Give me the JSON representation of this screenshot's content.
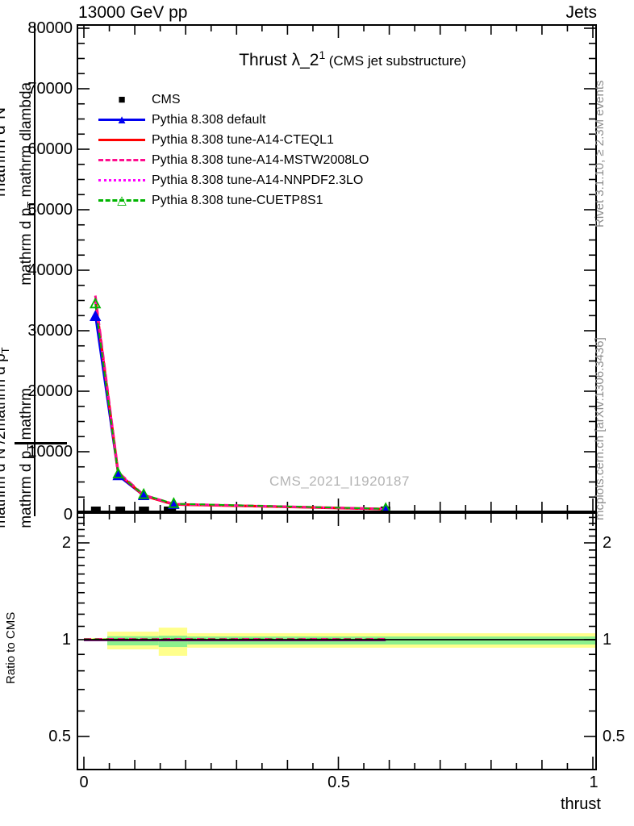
{
  "header": {
    "left": "13000 GeV pp",
    "right": "Jets"
  },
  "title": {
    "main": "Thrust λ_2",
    "sup": "1",
    "paren": "(CMS jet substructure)"
  },
  "watermark": "CMS_2021_I1920187",
  "side_notes": {
    "top": "Rivet 3.1.10, ≥ 2.3M events",
    "bottom": "mcplots.cern.ch [arXiv:1306.3436]"
  },
  "ylabel": {
    "one": "1",
    "outer_a": [
      "mathrm d N /2mathrm d p",
      "T"
    ],
    "outer_num": [
      "mathrm d",
      "2",
      "N"
    ],
    "inner_a": [
      "mathrm d p",
      "T",
      " mathrm"
    ],
    "inner_b": [
      "mathrm d p",
      "T",
      " mathrm dlambda"
    ]
  },
  "legend": {
    "items": [
      {
        "label": "CMS",
        "color": "#000000",
        "line": "none",
        "marker": "■"
      },
      {
        "label": "Pythia 8.308 default",
        "color": "#0000f0",
        "line": "solid",
        "marker": "▲"
      },
      {
        "label": "Pythia 8.308 tune-A14-CTEQL1",
        "color": "#ff0000",
        "line": "solid",
        "marker": ""
      },
      {
        "label": "Pythia 8.308 tune-A14-MSTW2008LO",
        "color": "#ff0e8e",
        "line": "dashed",
        "marker": ""
      },
      {
        "label": "Pythia 8.308 tune-A14-NNPDF2.3LO",
        "color": "#ff00ff",
        "line": "dotted",
        "marker": ""
      },
      {
        "label": "Pythia 8.308 tune-CUETP8S1",
        "color": "#00b400",
        "line": "dashed",
        "marker": "△"
      }
    ]
  },
  "axes": {
    "y_ticks": [
      "80000",
      "70000",
      "60000",
      "50000",
      "40000",
      "30000",
      "20000",
      "10000",
      "0"
    ],
    "x_ticks": [
      "0",
      "0.5",
      "1"
    ],
    "ratio_ticks": [
      "2",
      "1",
      "0.5"
    ],
    "xlabel": "thrust",
    "ratio_ylabel": "Ratio to CMS"
  },
  "chart_data": [
    {
      "type": "line",
      "title": "Thrust λ_2^1 (CMS jet substructure)",
      "xlabel": "thrust",
      "ylabel_garbled": "1 / mathrm d N /2mathrm d p_T  mathrm d²N / mathrm d p_T mathrm dlambda",
      "xlim": [
        0,
        1.013
      ],
      "ylim": [
        0,
        80400
      ],
      "x": [
        0.0225,
        0.0675,
        0.1175,
        0.1765,
        0.593
      ],
      "cms_value": 600,
      "cms_bins": [
        {
          "x0": 0.014,
          "x1": 0.033
        },
        {
          "x0": 0.062,
          "x1": 0.081
        },
        {
          "x0": 0.108,
          "x1": 0.128
        },
        {
          "x0": 0.157,
          "x1": 0.181
        },
        {
          "x0": 0.583,
          "x1": 0.602
        }
      ],
      "series": [
        {
          "name": "Pythia 8.308 default",
          "color": "#0000f0",
          "width": 2.2,
          "dash": "",
          "marker": "triangle-filled",
          "values": [
            32300,
            6000,
            2700,
            1250,
            500
          ]
        },
        {
          "name": "Pythia 8.308 tune-A14-CTEQL1",
          "color": "#ff0000",
          "width": 3.2,
          "dash": "",
          "marker": "",
          "values": [
            35200,
            6400,
            2750,
            1300,
            520
          ]
        },
        {
          "name": "Pythia 8.308 tune-A14-NNPDF2.3LO",
          "color": "#ff00ff",
          "width": 2.4,
          "dash": "2 3.5",
          "marker": "",
          "values": [
            35400,
            6500,
            2800,
            1320,
            530
          ]
        },
        {
          "name": "Pythia 8.308 tune-A14-MSTW2008LO",
          "color": "#ff0e8e",
          "width": 3.0,
          "dash": "9 5",
          "marker": "",
          "values": [
            35800,
            6600,
            2850,
            1350,
            540
          ]
        },
        {
          "name": "Pythia 8.308 tune-CUETP8S1",
          "color": "#00b400",
          "width": 2.0,
          "dash": "7 5",
          "marker": "triangle-open",
          "values": [
            34400,
            6300,
            2900,
            1400,
            560
          ]
        }
      ]
    },
    {
      "type": "band",
      "ylabel": "Ratio to CMS",
      "yscale": "log",
      "ylim": [
        0.39,
        2.47
      ],
      "ref_value": 1,
      "band_yellow_color": "#ffff8c",
      "band_green_color": "#8cf08c",
      "bands_yellow": [
        {
          "x0": 0.0,
          "x1": 0.046,
          "lo": 0.99,
          "hi": 1.012
        },
        {
          "x0": 0.046,
          "x1": 0.147,
          "lo": 0.933,
          "hi": 1.059
        },
        {
          "x0": 0.147,
          "x1": 0.203,
          "lo": 0.891,
          "hi": 1.09
        },
        {
          "x0": 0.203,
          "x1": 1.013,
          "lo": 0.944,
          "hi": 1.047
        }
      ],
      "bands_green": [
        {
          "x0": 0.0,
          "x1": 0.046,
          "lo": 0.995,
          "hi": 1.006
        },
        {
          "x0": 0.046,
          "x1": 0.147,
          "lo": 0.96,
          "hi": 1.025
        },
        {
          "x0": 0.147,
          "x1": 0.203,
          "lo": 0.949,
          "hi": 1.029
        },
        {
          "x0": 0.203,
          "x1": 1.013,
          "lo": 0.966,
          "hi": 1.023
        }
      ],
      "ratio_lines": [
        {
          "color": "#0000f0",
          "value": 0.994,
          "x1": 0.593,
          "dash": ""
        },
        {
          "color": "#ff0000",
          "value": 0.997,
          "x1": 0.593,
          "dash": ""
        },
        {
          "color": "#ff0e8e",
          "value": 1.007,
          "x1": 0.593,
          "dash": "9 5"
        },
        {
          "color": "#00b400",
          "value": 1.003,
          "x1": 0.593,
          "dash": "7 5"
        }
      ]
    }
  ]
}
